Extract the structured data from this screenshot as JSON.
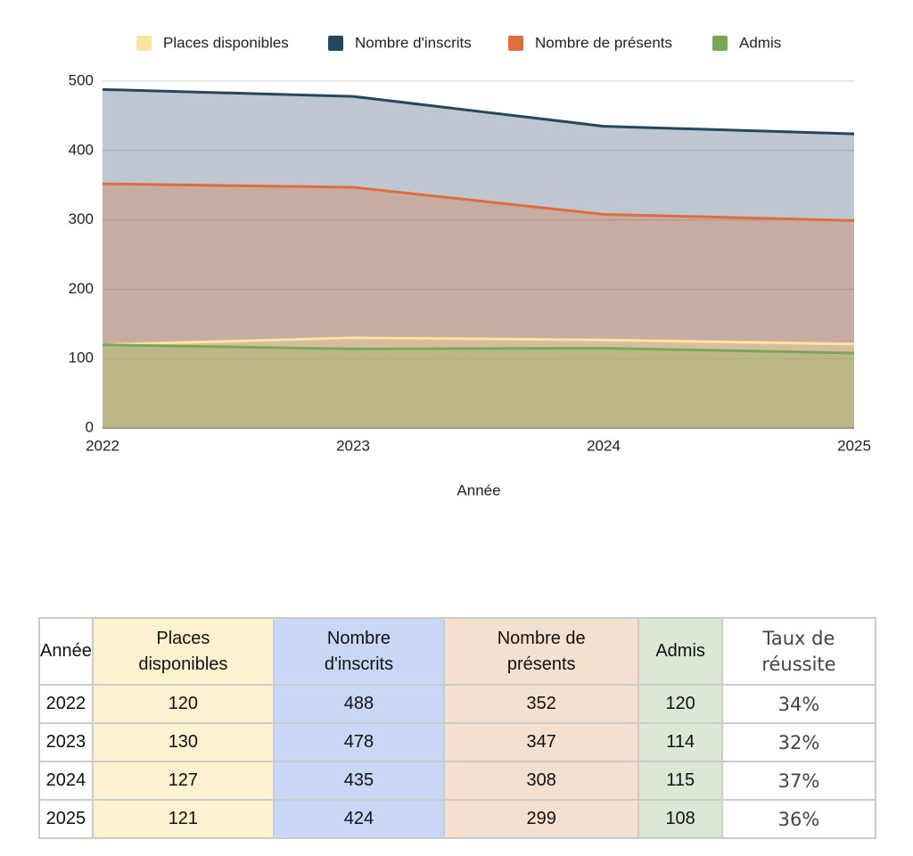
{
  "chart_data": {
    "type": "area",
    "x_label": "Année",
    "x": [
      2022,
      2023,
      2024,
      2025
    ],
    "xlim": [
      2022,
      2025
    ],
    "xticks": [
      2022,
      2023,
      2024,
      2025
    ],
    "ylim": [
      0,
      500
    ],
    "yticks": [
      0,
      100,
      200,
      300,
      400,
      500
    ],
    "grid": true,
    "legend": "top",
    "series": [
      {
        "name": "Places disponibles",
        "color": "#fce49c",
        "values": [
          120,
          130,
          127,
          121
        ]
      },
      {
        "name": "Nombre d'inscrits",
        "color": "#27465f",
        "values": [
          488,
          478,
          435,
          424
        ]
      },
      {
        "name": "Nombre de présents",
        "color": "#df6d3e",
        "values": [
          352,
          347,
          308,
          299
        ]
      },
      {
        "name": "Admis",
        "color": "#79a957",
        "values": [
          120,
          114,
          115,
          108
        ]
      }
    ]
  },
  "table": {
    "header": [
      "Année",
      "Places disponibles",
      "Nombre d'inscrits",
      "Nombre de présents",
      "Admis",
      "Taux de réussite"
    ],
    "rows": [
      [
        "2022",
        "120",
        "488",
        "352",
        "120",
        "34%"
      ],
      [
        "2023",
        "130",
        "478",
        "347",
        "114",
        "32%"
      ],
      [
        "2024",
        "127",
        "435",
        "308",
        "115",
        "37%"
      ],
      [
        "2025",
        "121",
        "424",
        "299",
        "108",
        "36%"
      ]
    ]
  }
}
